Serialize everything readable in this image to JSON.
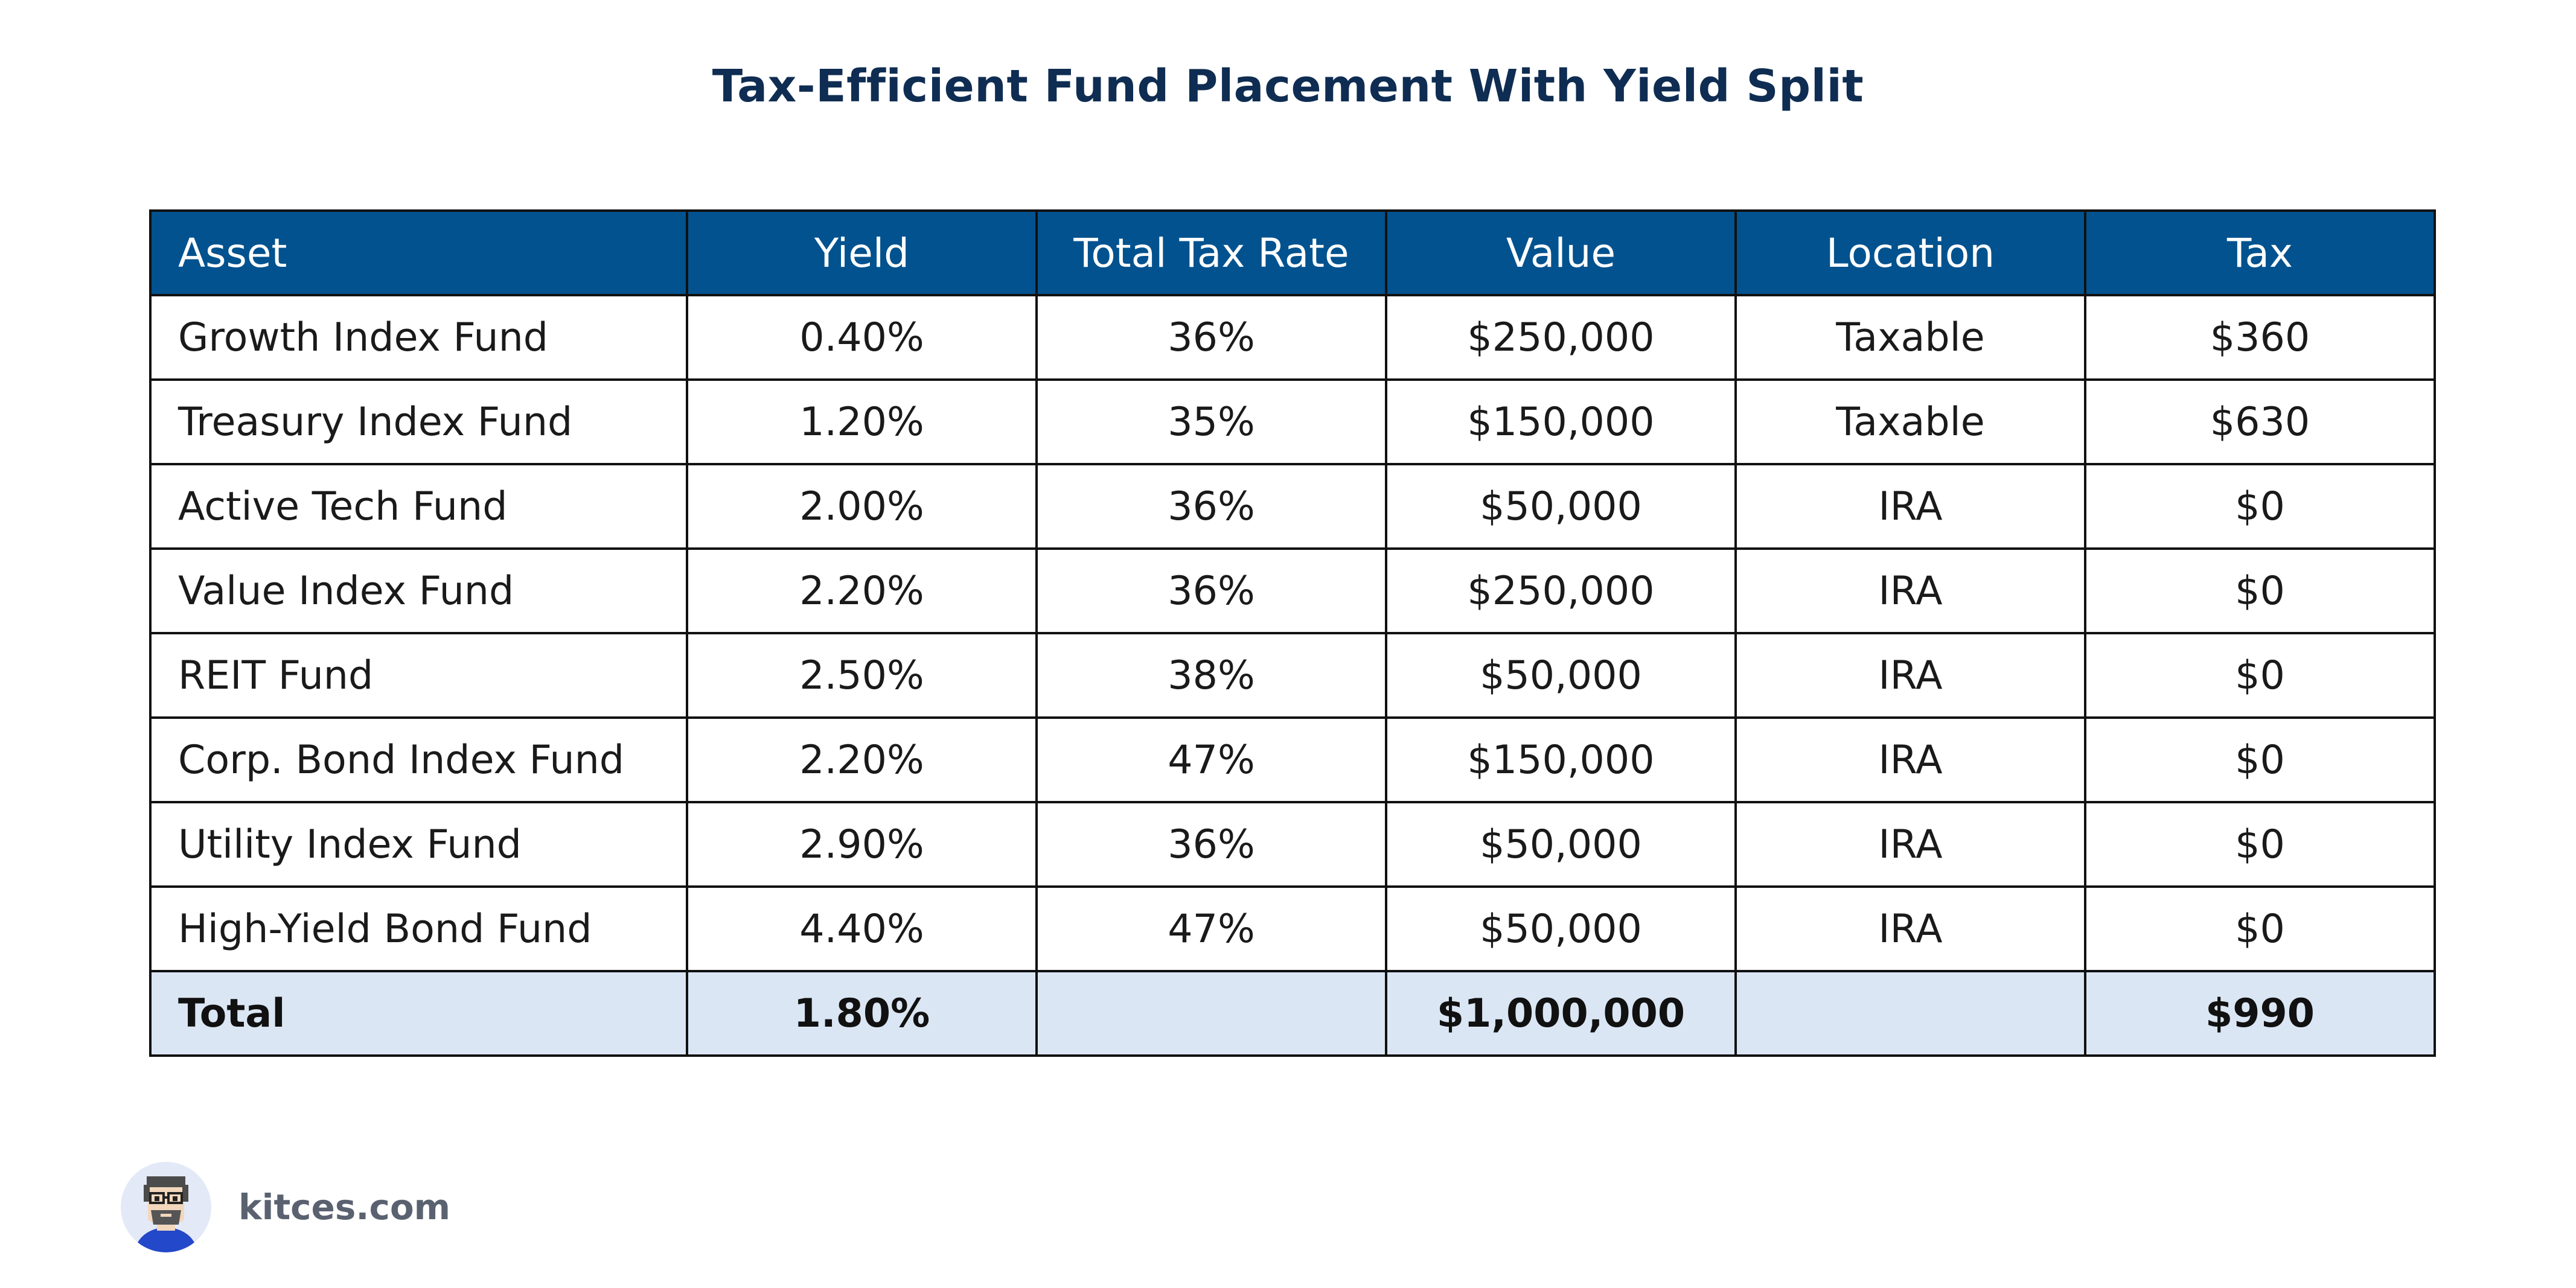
{
  "chart_data": {
    "type": "table",
    "title": "Tax-Efficient Fund Placement With Yield Split",
    "columns": [
      "Asset",
      "Yield",
      "Total Tax Rate",
      "Value",
      "Location",
      "Tax"
    ],
    "rows": [
      [
        "Growth Index Fund",
        "0.40%",
        "36%",
        "$250,000",
        "Taxable",
        "$360"
      ],
      [
        "Treasury Index Fund",
        "1.20%",
        "35%",
        "$150,000",
        "Taxable",
        "$630"
      ],
      [
        "Active Tech Fund",
        "2.00%",
        "36%",
        "$50,000",
        "IRA",
        "$0"
      ],
      [
        "Value Index Fund",
        "2.20%",
        "36%",
        "$250,000",
        "IRA",
        "$0"
      ],
      [
        "REIT Fund",
        "2.50%",
        "38%",
        "$50,000",
        "IRA",
        "$0"
      ],
      [
        "Corp. Bond Index Fund",
        "2.20%",
        "47%",
        "$150,000",
        "IRA",
        "$0"
      ],
      [
        "Utility Index Fund",
        "2.90%",
        "36%",
        "$50,000",
        "IRA",
        "$0"
      ],
      [
        "High-Yield Bond Fund",
        "4.40%",
        "47%",
        "$50,000",
        "IRA",
        "$0"
      ]
    ],
    "total": [
      "Total",
      "1.80%",
      "",
      "$1,000,000",
      "",
      "$990"
    ],
    "colors": {
      "header_background": "#02528f",
      "header_text": "#ffffff",
      "total_background": "#dbe6f4",
      "title": "#0f2d52"
    }
  },
  "branding": {
    "site": "kitces.com",
    "avatar_icon": "cartoon-avatar-icon"
  }
}
